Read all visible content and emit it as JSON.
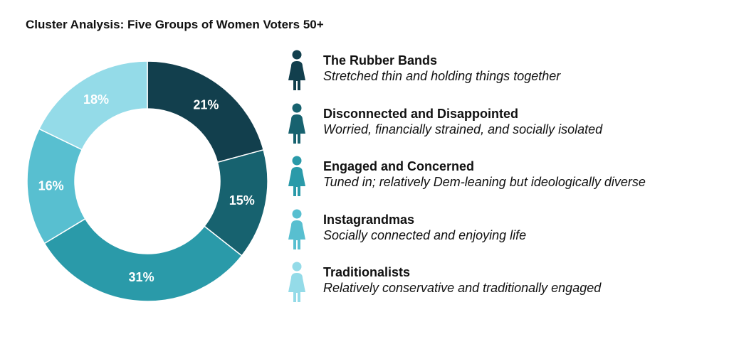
{
  "title": "Cluster Analysis: Five Groups of Women Voters 50+",
  "chart_data": {
    "type": "pie",
    "style": "donut",
    "title": "Cluster Analysis: Five Groups of Women Voters 50+",
    "slices": [
      {
        "name": "The Rubber Bands",
        "description": "Stretched thin and holding things together",
        "value": 21,
        "label": "21%",
        "color": "#123f4d"
      },
      {
        "name": "Disconnected and Disappointed",
        "description": "Worried, financially strained, and socially isolated",
        "value": 15,
        "label": "15%",
        "color": "#17626f"
      },
      {
        "name": "Engaged and Concerned",
        "description": "Tuned in; relatively Dem-leaning but ideologically diverse",
        "value": 31,
        "label": "31%",
        "color": "#2a9aa9"
      },
      {
        "name": "Instagrandmas",
        "description": "Socially connected and enjoying life",
        "value": 16,
        "label": "16%",
        "color": "#58bfd0"
      },
      {
        "name": "Traditionalists",
        "description": "Relatively conservative and traditionally engaged",
        "value": 18,
        "label": "18%",
        "color": "#94dbe8"
      }
    ],
    "legend_position": "right",
    "legend_icon": "woman-icon"
  }
}
